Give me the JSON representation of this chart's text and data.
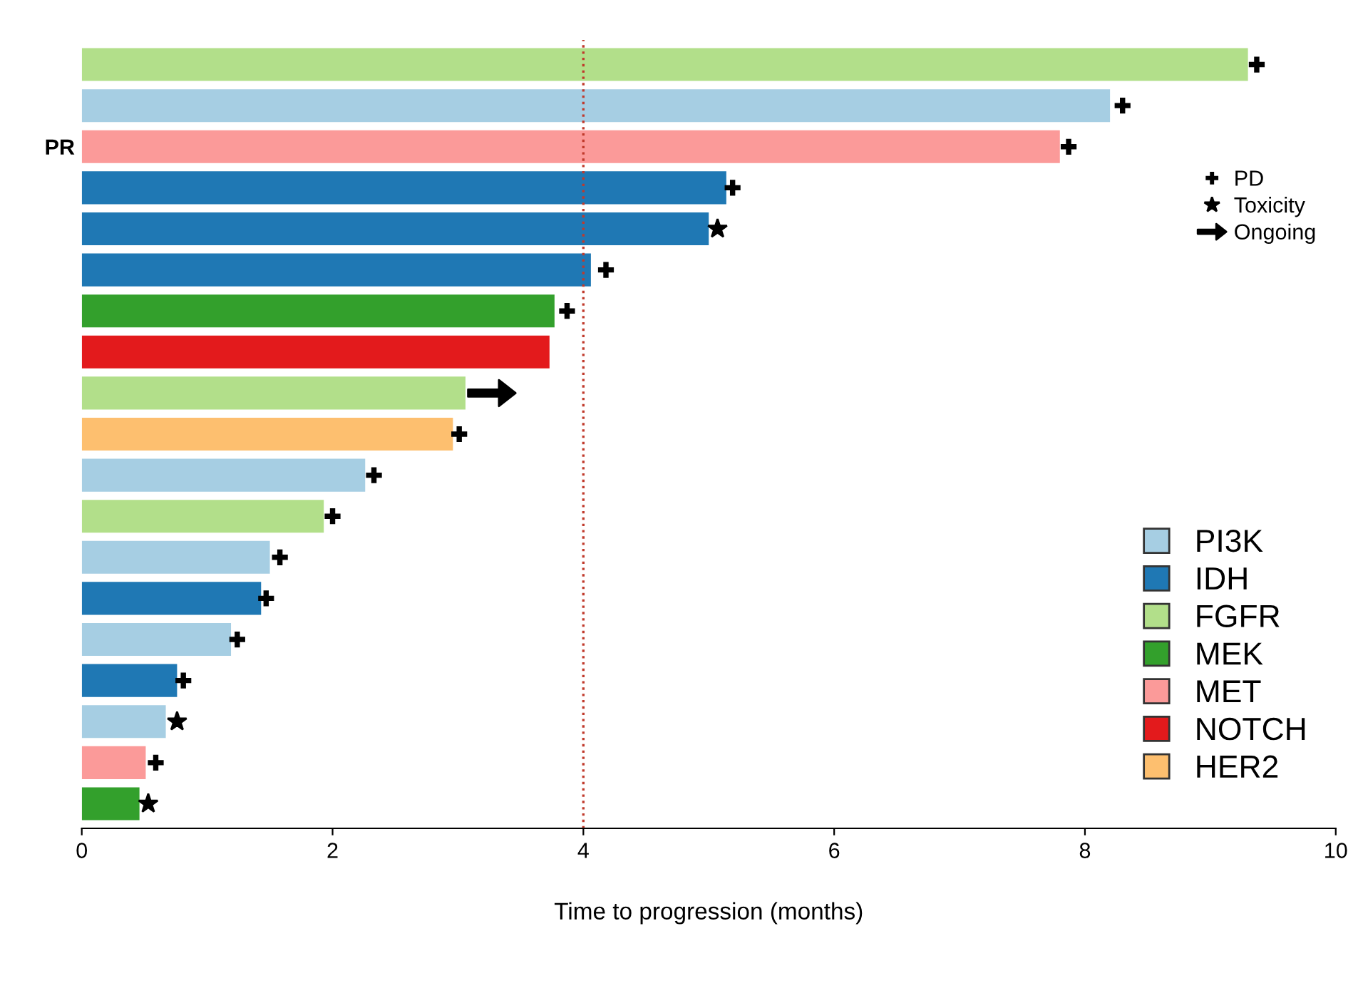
{
  "chart_data": {
    "type": "bar",
    "orientation": "horizontal",
    "xlabel": "Time to progression (months)",
    "categories": [
      null,
      null,
      "PR",
      null,
      null,
      null,
      null,
      null,
      null,
      null,
      null,
      null,
      null,
      null,
      null,
      null,
      null,
      null,
      null
    ],
    "xlim": [
      0,
      10
    ],
    "xticks": [
      0,
      2,
      4,
      6,
      8,
      10
    ],
    "grid": false,
    "legend": "right",
    "ref_lines": [
      {
        "axis": "x",
        "value": 4,
        "color": "#c0392b",
        "line_style": "dotted"
      }
    ],
    "series": [
      {
        "name": "PI3K",
        "color": "#a6cee3",
        "values": [
          null,
          8.2,
          null,
          null,
          null,
          null,
          null,
          null,
          null,
          null,
          2.26,
          null,
          1.5,
          null,
          1.19,
          null,
          0.67,
          null,
          null
        ]
      },
      {
        "name": "IDH",
        "color": "#1f78b4",
        "values": [
          null,
          null,
          null,
          5.14,
          5.0,
          4.06,
          null,
          null,
          null,
          null,
          null,
          null,
          null,
          1.43,
          null,
          0.76,
          null,
          null,
          null
        ]
      },
      {
        "name": "FGFR",
        "color": "#b2df8a",
        "values": [
          9.3,
          null,
          null,
          null,
          null,
          null,
          null,
          null,
          3.06,
          null,
          null,
          1.93,
          null,
          null,
          null,
          null,
          null,
          null,
          null
        ]
      },
      {
        "name": "MEK",
        "color": "#33a02c",
        "values": [
          null,
          null,
          null,
          null,
          null,
          null,
          3.77,
          null,
          null,
          null,
          null,
          null,
          null,
          null,
          null,
          null,
          null,
          null,
          0.46
        ]
      },
      {
        "name": "MET",
        "color": "#fb9a99",
        "values": [
          null,
          null,
          7.8,
          null,
          null,
          null,
          null,
          null,
          null,
          null,
          null,
          null,
          null,
          null,
          null,
          null,
          null,
          0.51,
          null
        ]
      },
      {
        "name": "NOTCH",
        "color": "#e31a1c",
        "values": [
          null,
          null,
          null,
          null,
          null,
          null,
          null,
          3.73,
          null,
          null,
          null,
          null,
          null,
          null,
          null,
          null,
          null,
          null,
          null
        ]
      },
      {
        "name": "HER2",
        "color": "#fdbf6f",
        "values": [
          null,
          null,
          null,
          null,
          null,
          null,
          null,
          null,
          null,
          2.96,
          null,
          null,
          null,
          null,
          null,
          null,
          null,
          null,
          null
        ]
      },
      {
        "type": "scatter",
        "name": "PD",
        "color": "#000000",
        "marker": "cross",
        "values": [
          9.37,
          8.3,
          7.87,
          5.19,
          null,
          4.18,
          3.87,
          null,
          null,
          3.01,
          2.33,
          2.0,
          1.58,
          1.47,
          1.24,
          0.81,
          null,
          0.59,
          null
        ]
      },
      {
        "type": "scatter",
        "name": "Toxicity",
        "color": "#000000",
        "marker": "star",
        "values": [
          null,
          null,
          null,
          null,
          5.07,
          null,
          null,
          null,
          null,
          null,
          null,
          null,
          null,
          null,
          null,
          null,
          0.76,
          null,
          0.53
        ]
      },
      {
        "type": "scatter",
        "name": "Ongoing",
        "color": "#000000",
        "values": [
          null,
          null,
          null,
          null,
          null,
          null,
          null,
          null,
          3.27,
          null,
          null,
          null,
          null,
          null,
          null,
          null,
          null,
          null,
          null
        ]
      }
    ]
  }
}
